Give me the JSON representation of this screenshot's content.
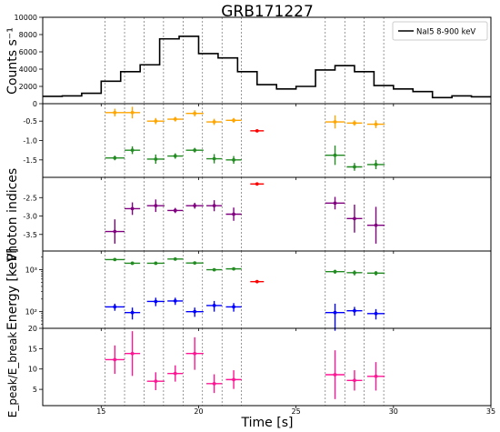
{
  "title": "GRB171227",
  "xlabel": "Time [s]",
  "x_tick_labels": [
    "15",
    "20",
    "25",
    "30",
    "35"
  ],
  "colors": {
    "lightcurve": "#000000",
    "dashed_lines": "#555555",
    "orange": "#ffa500",
    "green": "#228b22",
    "red": "#ff0000",
    "purple": "#800080",
    "blue": "#0000ff",
    "magenta": "#ff1493"
  },
  "chart_data": [
    {
      "type": "line",
      "panel": "counts",
      "ylabel": "Counts s⁻¹",
      "ylim": [
        0,
        10000
      ],
      "xlim": [
        12,
        35
      ],
      "y_tick_labels": [
        "0",
        "2000",
        "4000",
        "6000",
        "8000",
        "10000"
      ],
      "legend": "top-right",
      "series": [
        {
          "name": "NaI5 8-900 keV",
          "step_edges": [
            12,
            13,
            14,
            15,
            16,
            17,
            18,
            19,
            20,
            21,
            22,
            23,
            24,
            25,
            26,
            27,
            28,
            29,
            30,
            31,
            32,
            33,
            34,
            35
          ],
          "values": [
            850,
            900,
            1200,
            2600,
            3700,
            4500,
            7500,
            7800,
            5800,
            5300,
            3700,
            2200,
            1700,
            2000,
            3900,
            4400,
            3700,
            2100,
            1700,
            1400,
            700,
            900,
            800
          ]
        }
      ]
    },
    {
      "type": "scatter",
      "panel": "photon_indices_1",
      "ylim": [
        -1.95,
        -0.05
      ],
      "y_tick_labels": [
        "-0.5",
        "-1.0",
        "-1.5"
      ],
      "series": [
        {
          "color": "orange",
          "points": [
            [
              15.7,
              -0.28,
              0.5,
              0.1
            ],
            [
              16.6,
              -0.28,
              0.4,
              0.15
            ],
            [
              17.8,
              -0.5,
              0.45,
              0.08
            ],
            [
              18.8,
              -0.45,
              0.4,
              0.06
            ],
            [
              19.8,
              -0.3,
              0.45,
              0.08
            ],
            [
              20.8,
              -0.52,
              0.4,
              0.08
            ],
            [
              21.8,
              -0.48,
              0.4,
              0.06
            ],
            [
              27.0,
              -0.52,
              0.5,
              0.17
            ],
            [
              28.0,
              -0.55,
              0.4,
              0.07
            ],
            [
              29.1,
              -0.58,
              0.45,
              0.1
            ]
          ]
        },
        {
          "color": "green",
          "points": [
            [
              15.7,
              -1.45,
              0.5,
              0.06
            ],
            [
              16.6,
              -1.25,
              0.4,
              0.1
            ],
            [
              17.8,
              -1.48,
              0.45,
              0.12
            ],
            [
              18.8,
              -1.4,
              0.4,
              0.07
            ],
            [
              19.8,
              -1.25,
              0.45,
              0.06
            ],
            [
              20.8,
              -1.47,
              0.4,
              0.12
            ],
            [
              21.8,
              -1.5,
              0.4,
              0.1
            ],
            [
              27.0,
              -1.38,
              0.5,
              0.25
            ],
            [
              28.0,
              -1.68,
              0.4,
              0.1
            ],
            [
              29.1,
              -1.62,
              0.45,
              0.12
            ]
          ]
        },
        {
          "color": "red",
          "points": [
            [
              23.0,
              -0.75,
              0.35,
              0.03
            ]
          ]
        }
      ]
    },
    {
      "type": "scatter",
      "panel": "photon_indices_2",
      "ylabel": "Photon indices",
      "ylim": [
        -3.95,
        -1.95
      ],
      "y_tick_labels": [
        "-2.5",
        "-3.0",
        "-3.5"
      ],
      "series": [
        {
          "color": "purple",
          "points": [
            [
              15.7,
              -3.42,
              0.5,
              0.33
            ],
            [
              16.6,
              -2.8,
              0.4,
              0.17
            ],
            [
              17.8,
              -2.72,
              0.45,
              0.17
            ],
            [
              18.8,
              -2.85,
              0.4,
              0.07
            ],
            [
              19.8,
              -2.72,
              0.45,
              0.08
            ],
            [
              20.8,
              -2.72,
              0.4,
              0.15
            ],
            [
              21.8,
              -2.95,
              0.4,
              0.18
            ],
            [
              27.0,
              -2.65,
              0.5,
              0.17
            ],
            [
              28.0,
              -3.07,
              0.4,
              0.38
            ],
            [
              29.1,
              -3.25,
              0.45,
              0.5
            ]
          ]
        },
        {
          "color": "red",
          "points": [
            [
              23.0,
              -2.13,
              0.35,
              0.04
            ]
          ]
        }
      ]
    },
    {
      "type": "scatter",
      "panel": "energy",
      "ylabel": "Energy [keV]",
      "yscale": "log",
      "ylim": [
        40,
        2800
      ],
      "y_tick_labels": [
        "10²",
        "10³"
      ],
      "series": [
        {
          "color": "green",
          "points": [
            [
              15.7,
              1750,
              0.5,
              120
            ],
            [
              16.6,
              1430,
              0.4,
              120
            ],
            [
              17.8,
              1430,
              0.45,
              100
            ],
            [
              18.8,
              1800,
              0.4,
              100
            ],
            [
              19.8,
              1450,
              0.45,
              100
            ],
            [
              20.8,
              1000,
              0.4,
              80
            ],
            [
              21.8,
              1050,
              0.4,
              80
            ],
            [
              27.0,
              900,
              0.5,
              100
            ],
            [
              28.0,
              850,
              0.4,
              120
            ],
            [
              29.1,
              830,
              0.45,
              100
            ]
          ]
        },
        {
          "color": "red",
          "points": [
            [
              23.0,
              520,
              0.35,
              30
            ]
          ]
        },
        {
          "color": "blue",
          "points": [
            [
              15.7,
              130,
              0.5,
              25
            ],
            [
              16.6,
              95,
              0.4,
              30
            ],
            [
              17.8,
              175,
              0.45,
              40
            ],
            [
              18.8,
              180,
              0.4,
              35
            ],
            [
              19.8,
              100,
              0.45,
              25
            ],
            [
              20.8,
              140,
              0.4,
              40
            ],
            [
              21.8,
              130,
              0.4,
              30
            ],
            [
              27.0,
              95,
              0.5,
              60
            ],
            [
              28.0,
              105,
              0.4,
              25
            ],
            [
              29.1,
              90,
              0.45,
              25
            ]
          ]
        }
      ]
    },
    {
      "type": "scatter",
      "panel": "ratio",
      "ylabel": "E_peak/E_break",
      "ylim": [
        1,
        20
      ],
      "y_tick_labels": [
        "5",
        "10",
        "15",
        "20"
      ],
      "series": [
        {
          "color": "magenta",
          "points": [
            [
              15.7,
              12.3,
              0.5,
              3.5
            ],
            [
              16.6,
              13.8,
              0.4,
              5.5
            ],
            [
              17.8,
              7.0,
              0.45,
              2.2
            ],
            [
              18.8,
              8.9,
              0.4,
              2.0
            ],
            [
              19.8,
              13.8,
              0.45,
              4.0
            ],
            [
              20.8,
              6.4,
              0.4,
              2.3
            ],
            [
              21.8,
              7.4,
              0.4,
              2.3
            ],
            [
              27.0,
              8.6,
              0.5,
              6.0
            ],
            [
              28.0,
              7.2,
              0.4,
              2.5
            ],
            [
              29.1,
              8.2,
              0.45,
              3.5
            ]
          ]
        }
      ]
    }
  ]
}
